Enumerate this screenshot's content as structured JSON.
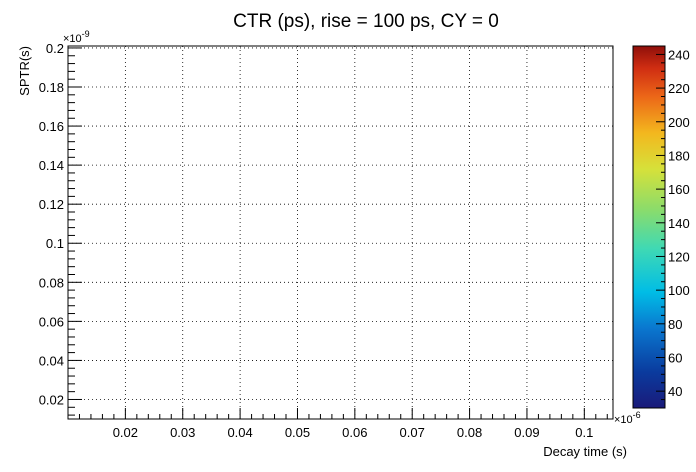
{
  "chart_data": {
    "type": "contour",
    "title": "CTR (ps), rise = 100 ps, CY = 0",
    "xlabel": "Decay time (s)",
    "ylabel": "SPTR(s)",
    "x_multiplier_label": "×10",
    "x_multiplier_exp": "-6",
    "y_multiplier_label": "×10",
    "y_multiplier_exp": "-9",
    "xlim": [
      0.01,
      0.105
    ],
    "ylim": [
      0.01,
      0.201
    ],
    "x_ticks": [
      0.02,
      0.03,
      0.04,
      0.05,
      0.06,
      0.07,
      0.08,
      0.09,
      0.1
    ],
    "x_tick_labels": [
      "0.02",
      "0.03",
      "0.04",
      "0.05",
      "0.06",
      "0.07",
      "0.08",
      "0.09",
      "0.1"
    ],
    "y_ticks": [
      0.02,
      0.04,
      0.06,
      0.08,
      0.1,
      0.12,
      0.14,
      0.16,
      0.18,
      0.2
    ],
    "y_tick_labels": [
      "0.02",
      "0.04",
      "0.06",
      "0.08",
      "0.1",
      "0.12",
      "0.14",
      "0.16",
      "0.18",
      "0.2"
    ],
    "grid": true,
    "colorbar": {
      "range": [
        30,
        245
      ],
      "ticks": [
        40,
        60,
        80,
        100,
        120,
        140,
        160,
        180,
        200,
        220,
        240
      ],
      "tick_labels": [
        "40",
        "60",
        "80",
        "100",
        "120",
        "140",
        "160",
        "180",
        "200",
        "220",
        "240"
      ]
    },
    "contour_x_range": [
      0.015,
      0.103
    ],
    "contour_levels": [
      50,
      60,
      70,
      80,
      90,
      100,
      110,
      120,
      130,
      140,
      150,
      160,
      170,
      180,
      190,
      200,
      210,
      220,
      230,
      240
    ]
  }
}
